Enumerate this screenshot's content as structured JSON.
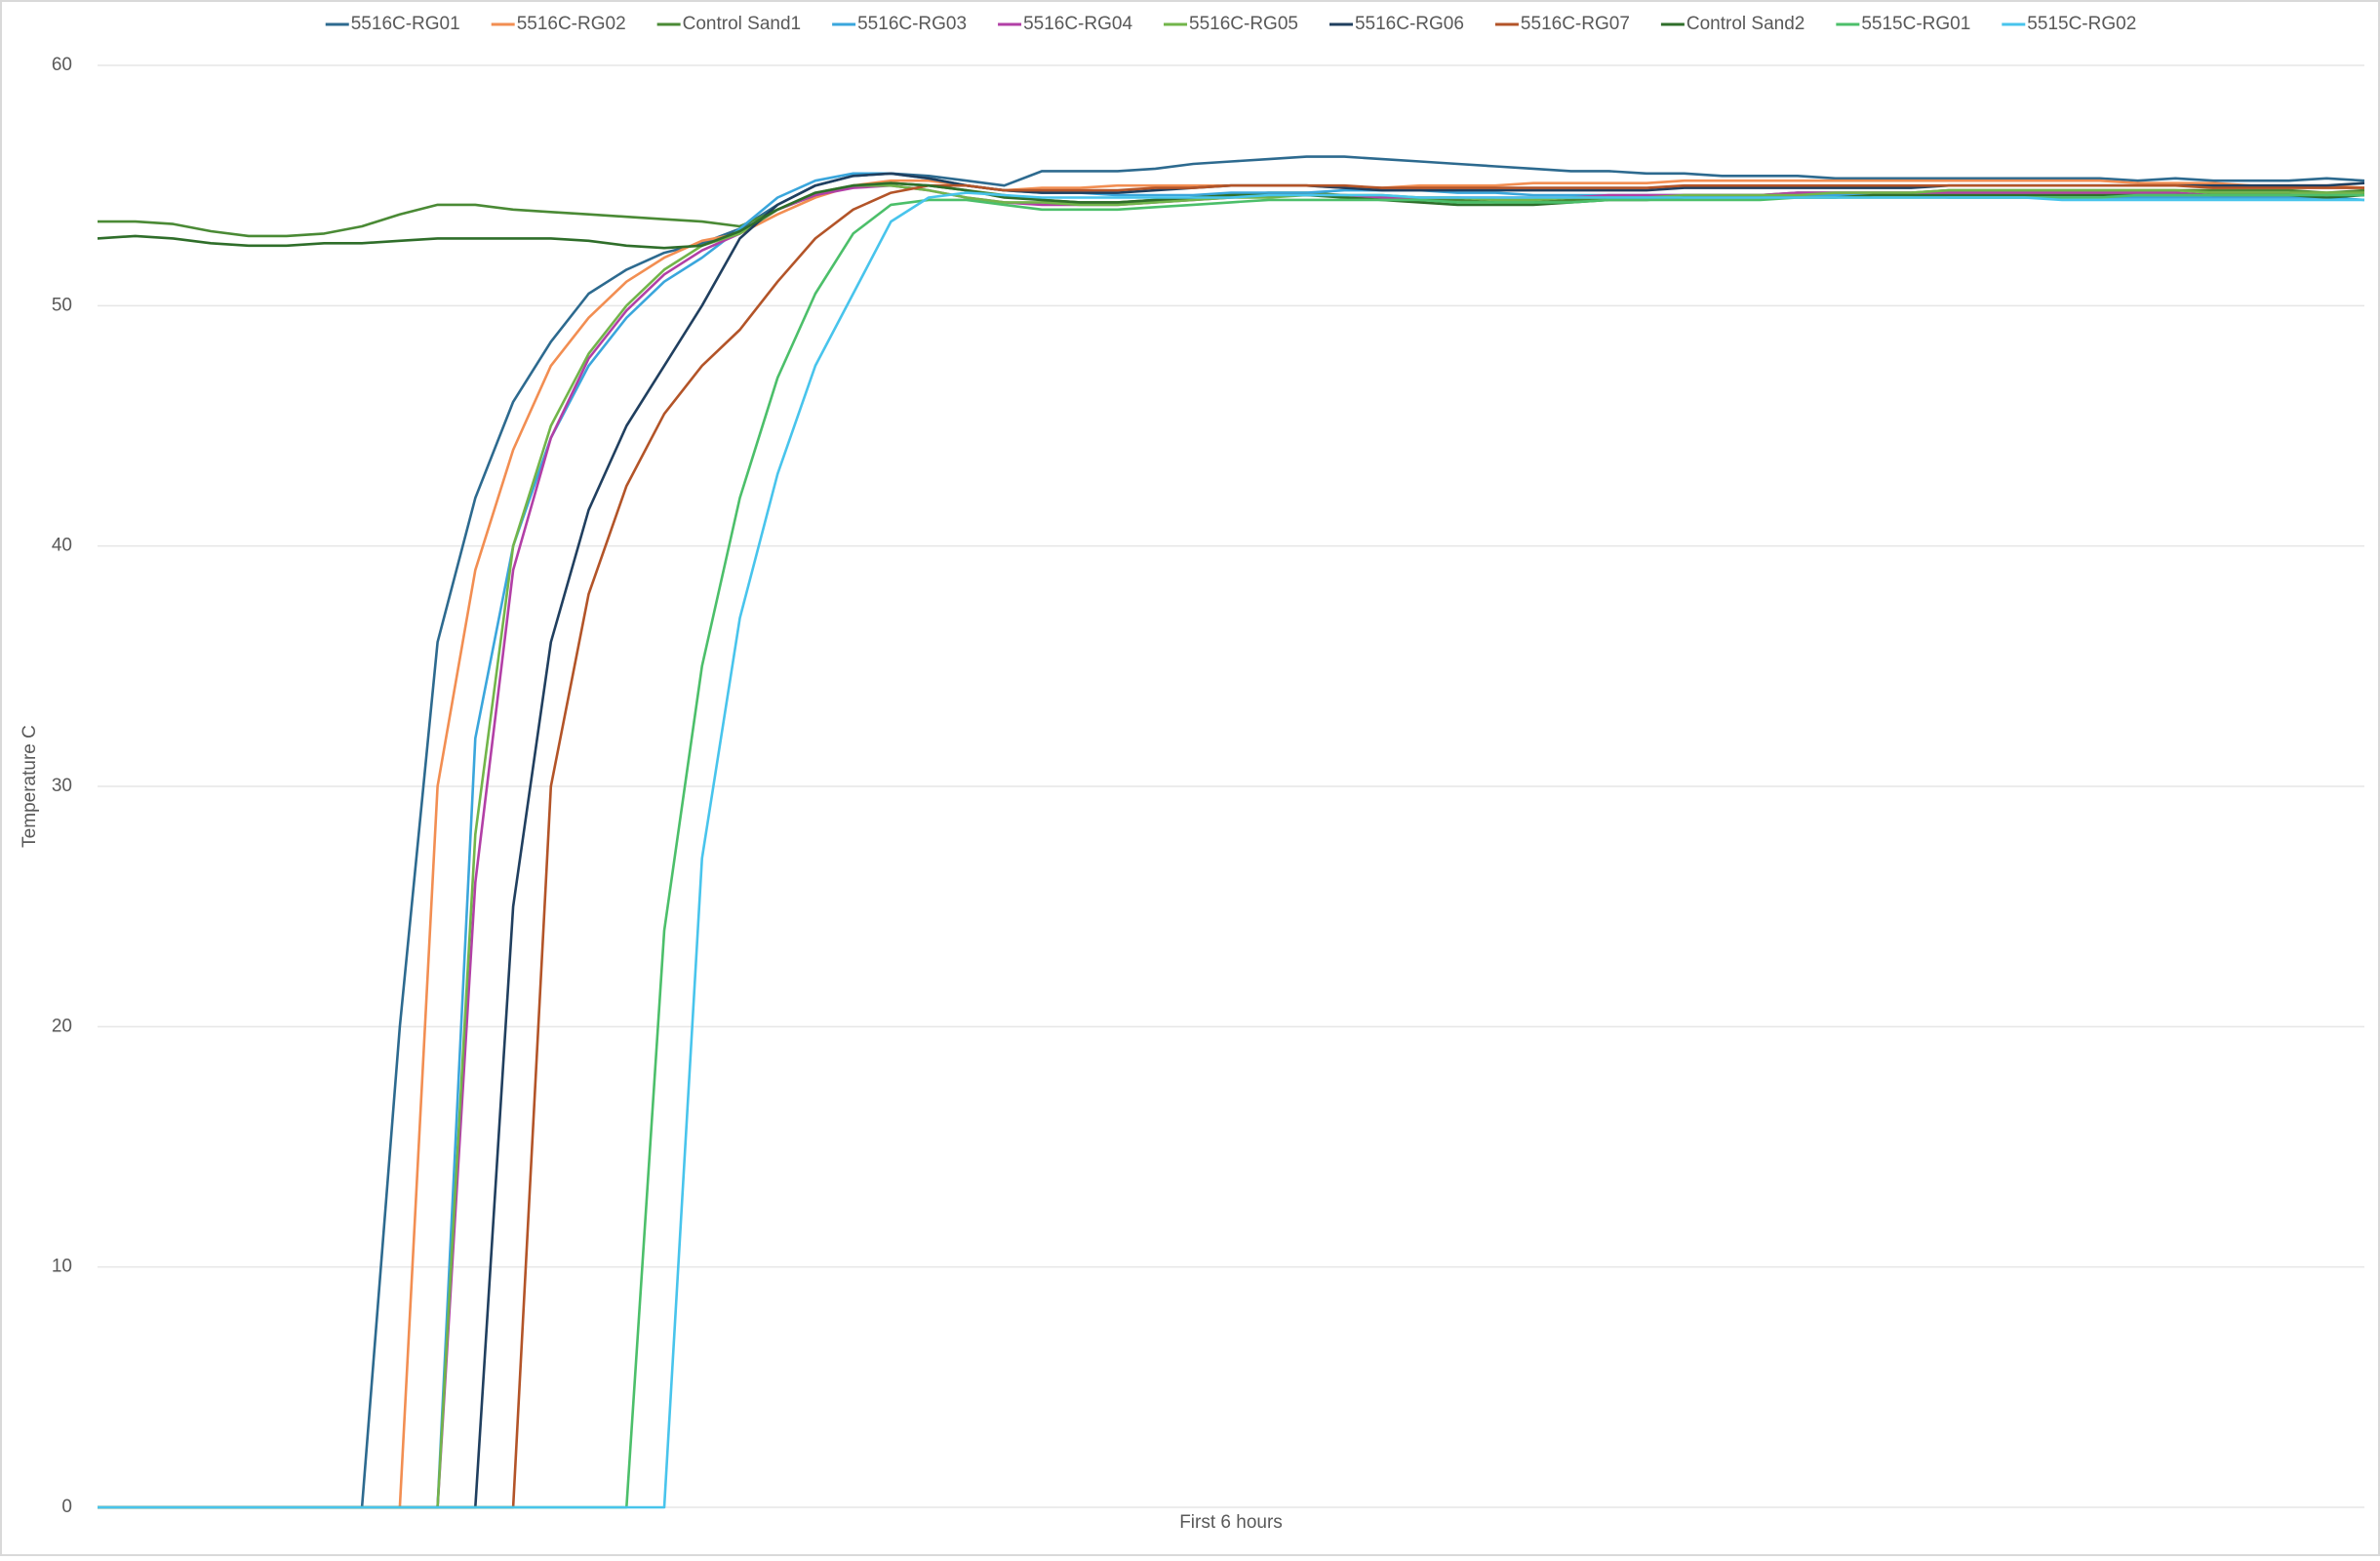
{
  "chart_data": {
    "type": "line",
    "x_label": "First 6 hours",
    "y_label": "Temperature C",
    "categories": [
      null,
      null,
      null,
      null,
      null,
      null,
      null,
      null,
      null,
      null,
      null,
      null,
      null,
      null,
      null,
      null,
      null,
      null,
      null,
      null,
      null,
      null,
      null,
      null,
      null,
      null,
      null,
      null,
      null,
      null,
      null,
      null,
      null,
      null,
      null,
      null,
      null,
      null,
      null,
      null,
      null,
      null,
      null,
      null,
      null,
      null,
      null,
      null,
      null,
      null,
      null,
      null,
      null,
      null,
      null,
      null,
      null,
      null,
      null,
      null,
      null
    ],
    "ylim": [
      0,
      60
    ],
    "yticks": [
      0,
      10,
      20,
      30,
      40,
      50,
      60
    ],
    "grid": true,
    "legend": "top",
    "series": [
      {
        "name": "5516C-RG01",
        "color": "#2d6a8f",
        "values": [
          0,
          0,
          0,
          0,
          0,
          0,
          0,
          0,
          20,
          36,
          42,
          46,
          48.5,
          50.5,
          51.5,
          52.2,
          52.6,
          53.2,
          54.2,
          55,
          55.4,
          55.5,
          55.4,
          55.2,
          55,
          55.6,
          55.6,
          55.6,
          55.7,
          55.9,
          56.0,
          56.1,
          56.2,
          56.2,
          56.1,
          56.0,
          55.9,
          55.8,
          55.7,
          55.6,
          55.6,
          55.5,
          55.5,
          55.4,
          55.4,
          55.4,
          55.3,
          55.3,
          55.3,
          55.3,
          55.3,
          55.3,
          55.3,
          55.3,
          55.2,
          55.3,
          55.2,
          55.2,
          55.2,
          55.3,
          55.2
        ]
      },
      {
        "name": "5516C-RG02",
        "color": "#f28e52",
        "values": [
          0,
          0,
          0,
          0,
          0,
          0,
          0,
          0,
          0,
          30,
          39,
          44,
          47.5,
          49.5,
          51,
          52,
          52.7,
          53,
          53.8,
          54.5,
          55,
          55.2,
          55.2,
          55,
          54.8,
          54.9,
          54.9,
          55.0,
          55.0,
          55.0,
          55.0,
          55.0,
          55.0,
          54.9,
          54.9,
          55.0,
          55.0,
          55.0,
          55.1,
          55.1,
          55.1,
          55.1,
          55.2,
          55.2,
          55.2,
          55.2,
          55.2,
          55.2,
          55.2,
          55.2,
          55.2,
          55.2,
          55.2,
          55.2,
          55.1,
          55.1,
          55.1,
          55.0,
          55.0,
          55.0,
          54.9
        ]
      },
      {
        "name": "Control Sand1",
        "color": "#4a8a35",
        "values": [
          53.5,
          53.5,
          53.4,
          53.1,
          52.9,
          52.9,
          53.0,
          53.3,
          53.8,
          54.2,
          54.2,
          54.0,
          53.9,
          53.8,
          53.7,
          53.6,
          53.5,
          53.3,
          54.0,
          54.6,
          55.0,
          55.1,
          55.0,
          54.8,
          54.6,
          54.4,
          54.3,
          54.3,
          54.4,
          54.5,
          54.6,
          54.7,
          54.7,
          54.6,
          54.5,
          54.4,
          54.4,
          54.3,
          54.3,
          54.4,
          54.5,
          54.5,
          54.6,
          54.6,
          54.6,
          54.7,
          54.7,
          54.7,
          54.7,
          54.8,
          54.8,
          54.8,
          54.8,
          54.8,
          54.8,
          54.8,
          54.8,
          54.8,
          54.8,
          54.7,
          54.8
        ]
      },
      {
        "name": "5516C-RG03",
        "color": "#3aa6dc",
        "values": [
          0,
          0,
          0,
          0,
          0,
          0,
          0,
          0,
          0,
          0,
          32,
          40,
          44.5,
          47.5,
          49.5,
          51,
          52,
          53.2,
          54.5,
          55.2,
          55.5,
          55.5,
          55.3,
          55,
          54.8,
          54.7,
          54.7,
          54.6,
          54.6,
          54.6,
          54.7,
          54.7,
          54.7,
          54.8,
          54.8,
          54.8,
          54.7,
          54.7,
          54.6,
          54.6,
          54.6,
          54.6,
          54.6,
          54.6,
          54.6,
          54.6,
          54.6,
          54.6,
          54.6,
          54.5,
          54.5,
          54.5,
          54.5,
          54.5,
          54.5,
          54.5,
          54.5,
          54.5,
          54.5,
          54.5,
          54.4
        ]
      },
      {
        "name": "5516C-RG04",
        "color": "#b23fa6",
        "values": [
          0,
          0,
          0,
          0,
          0,
          0,
          0,
          0,
          0,
          0,
          26,
          39,
          44.5,
          47.8,
          49.8,
          51.3,
          52.3,
          53,
          54,
          54.6,
          54.9,
          55,
          54.8,
          54.5,
          54.3,
          54.2,
          54.2,
          54.2,
          54.3,
          54.4,
          54.5,
          54.6,
          54.6,
          54.6,
          54.5,
          54.5,
          54.5,
          54.5,
          54.5,
          54.5,
          54.6,
          54.6,
          54.6,
          54.6,
          54.6,
          54.7,
          54.7,
          54.7,
          54.7,
          54.7,
          54.7,
          54.7,
          54.7,
          54.7,
          54.7,
          54.7,
          54.6,
          54.6,
          54.6,
          54.6,
          54.6
        ]
      },
      {
        "name": "5516C-RG05",
        "color": "#72b54a",
        "values": [
          0,
          0,
          0,
          0,
          0,
          0,
          0,
          0,
          0,
          0,
          28,
          40,
          45,
          48,
          50,
          51.5,
          52.5,
          53,
          54,
          54.7,
          55,
          55,
          54.8,
          54.5,
          54.3,
          54.3,
          54.2,
          54.2,
          54.3,
          54.4,
          54.5,
          54.5,
          54.6,
          54.6,
          54.6,
          54.5,
          54.5,
          54.4,
          54.4,
          54.5,
          54.5,
          54.5,
          54.6,
          54.6,
          54.6,
          54.6,
          54.7,
          54.7,
          54.7,
          54.8,
          54.8,
          54.8,
          54.8,
          54.8,
          54.8,
          54.8,
          54.7,
          54.7,
          54.7,
          54.7,
          54.7
        ]
      },
      {
        "name": "5516C-RG06",
        "color": "#203f5f",
        "values": [
          0,
          0,
          0,
          0,
          0,
          0,
          0,
          0,
          0,
          0,
          0,
          25,
          36,
          41.5,
          45,
          47.5,
          50,
          52.8,
          54.2,
          55,
          55.4,
          55.5,
          55.3,
          55,
          54.8,
          54.7,
          54.7,
          54.7,
          54.8,
          54.9,
          55.0,
          55.0,
          55.0,
          54.9,
          54.8,
          54.8,
          54.8,
          54.8,
          54.8,
          54.8,
          54.8,
          54.8,
          54.9,
          54.9,
          54.9,
          54.9,
          54.9,
          54.9,
          54.9,
          55.0,
          55.0,
          55.0,
          55.0,
          55.0,
          55.0,
          55.0,
          55.0,
          55.0,
          55.0,
          55.0,
          55.1
        ]
      },
      {
        "name": "5516C-RG07",
        "color": "#b35428",
        "values": [
          0,
          0,
          0,
          0,
          0,
          0,
          0,
          0,
          0,
          0,
          0,
          0,
          30,
          38,
          42.5,
          45.5,
          47.5,
          49,
          51,
          52.8,
          54,
          54.7,
          55,
          55,
          54.8,
          54.8,
          54.8,
          54.8,
          54.9,
          54.9,
          55.0,
          55.0,
          55.0,
          55.0,
          54.9,
          54.9,
          54.9,
          54.9,
          54.9,
          54.9,
          54.9,
          54.9,
          55.0,
          55.0,
          55.0,
          55.0,
          55.0,
          55.0,
          55.0,
          55.0,
          55.0,
          55.0,
          55.0,
          55.0,
          55.0,
          55.0,
          54.9,
          54.9,
          54.9,
          54.9,
          54.9
        ]
      },
      {
        "name": "Control Sand2",
        "color": "#2f6e2a",
        "values": [
          52.8,
          52.9,
          52.8,
          52.6,
          52.5,
          52.5,
          52.6,
          52.6,
          52.7,
          52.8,
          52.8,
          52.8,
          52.8,
          52.7,
          52.5,
          52.4,
          52.5,
          53.1,
          54.0,
          54.7,
          55.0,
          55.1,
          55.0,
          54.8,
          54.5,
          54.4,
          54.3,
          54.3,
          54.4,
          54.5,
          54.6,
          54.6,
          54.6,
          54.5,
          54.4,
          54.3,
          54.2,
          54.2,
          54.2,
          54.3,
          54.4,
          54.4,
          54.5,
          54.5,
          54.5,
          54.5,
          54.5,
          54.6,
          54.6,
          54.6,
          54.6,
          54.6,
          54.6,
          54.6,
          54.6,
          54.6,
          54.6,
          54.6,
          54.6,
          54.5,
          54.6
        ]
      },
      {
        "name": "5515C-RG01",
        "color": "#4cbf6a",
        "values": [
          0,
          0,
          0,
          0,
          0,
          0,
          0,
          0,
          0,
          0,
          0,
          0,
          0,
          0,
          0,
          24,
          35,
          42,
          47,
          50.5,
          53,
          54.2,
          54.4,
          54.4,
          54.2,
          54.0,
          54.0,
          54.0,
          54.1,
          54.2,
          54.3,
          54.4,
          54.4,
          54.4,
          54.4,
          54.4,
          54.3,
          54.3,
          54.3,
          54.3,
          54.4,
          54.4,
          54.4,
          54.4,
          54.4,
          54.5,
          54.5,
          54.5,
          54.5,
          54.5,
          54.5,
          54.5,
          54.5,
          54.5,
          54.6,
          54.6,
          54.6,
          54.6,
          54.6,
          54.6,
          54.6
        ]
      },
      {
        "name": "5515C-RG02",
        "color": "#48c4ec",
        "values": [
          0,
          0,
          0,
          0,
          0,
          0,
          0,
          0,
          0,
          0,
          0,
          0,
          0,
          0,
          0,
          0,
          27,
          37,
          43,
          47.5,
          50.5,
          53.5,
          54.5,
          54.7,
          54.6,
          54.5,
          54.5,
          54.5,
          54.5,
          54.5,
          54.5,
          54.6,
          54.6,
          54.6,
          54.6,
          54.5,
          54.5,
          54.5,
          54.5,
          54.5,
          54.5,
          54.5,
          54.5,
          54.5,
          54.5,
          54.5,
          54.5,
          54.5,
          54.5,
          54.5,
          54.5,
          54.5,
          54.4,
          54.4,
          54.4,
          54.4,
          54.4,
          54.4,
          54.4,
          54.4,
          54.4
        ]
      }
    ]
  }
}
